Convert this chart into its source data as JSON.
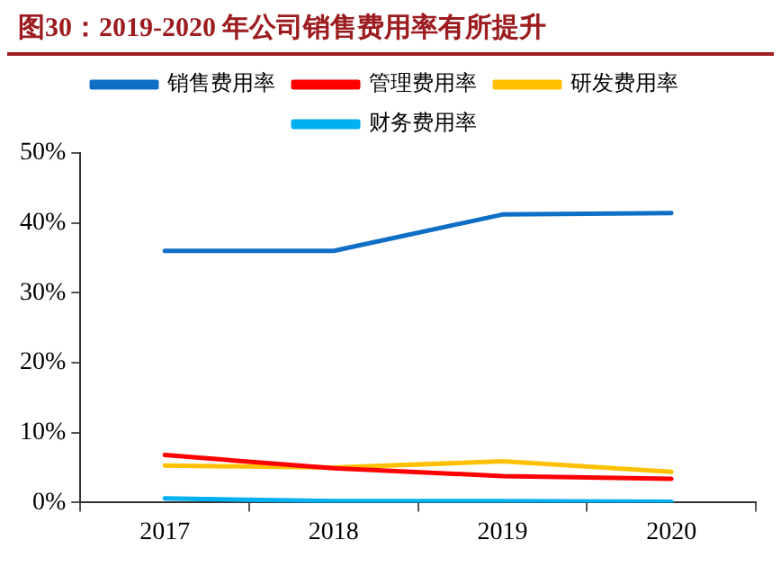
{
  "chart_data": {
    "type": "line",
    "title": "图30：2019-2020 年公司销售费用率有所提升",
    "categories": [
      "2017",
      "2018",
      "2019",
      "2020"
    ],
    "series": [
      {
        "name": "销售费用率",
        "color": "#0f6fc6",
        "values": [
          36.0,
          36.0,
          41.2,
          41.4
        ]
      },
      {
        "name": "管理费用率",
        "color": "#ff0000",
        "values": [
          6.8,
          4.9,
          3.8,
          3.4
        ]
      },
      {
        "name": "研发费用率",
        "color": "#ffc000",
        "values": [
          5.3,
          5.0,
          5.9,
          4.4
        ]
      },
      {
        "name": "财务费用率",
        "color": "#00b0f0",
        "values": [
          0.6,
          0.2,
          0.2,
          0.1
        ]
      }
    ],
    "ylim": [
      0,
      50
    ],
    "yticks": [
      {
        "value": 0,
        "label": "0%"
      },
      {
        "value": 10,
        "label": "10%"
      },
      {
        "value": 20,
        "label": "20%"
      },
      {
        "value": 30,
        "label": "30%"
      },
      {
        "value": 40,
        "label": "40%"
      },
      {
        "value": 50,
        "label": "50%"
      }
    ],
    "grid": false,
    "legend": "top",
    "marker": "none",
    "line_style": "solid"
  }
}
